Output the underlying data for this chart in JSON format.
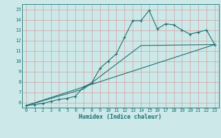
{
  "title": "",
  "xlabel": "Humidex (Indice chaleur)",
  "ylabel": "",
  "bg_color": "#cce8e8",
  "grid_color": "#d4a0a0",
  "line_color": "#1a7070",
  "xlim": [
    -0.5,
    23.5
  ],
  "ylim": [
    5.5,
    15.5
  ],
  "xticks": [
    0,
    1,
    2,
    3,
    4,
    5,
    6,
    7,
    8,
    9,
    10,
    11,
    12,
    13,
    14,
    15,
    16,
    17,
    18,
    19,
    20,
    21,
    22,
    23
  ],
  "yticks": [
    6,
    7,
    8,
    9,
    10,
    11,
    12,
    13,
    14,
    15
  ],
  "line1_x": [
    0,
    1,
    2,
    3,
    4,
    5,
    6,
    7,
    8,
    9,
    10,
    11,
    12,
    13,
    14,
    15,
    16,
    17,
    18,
    19,
    20,
    21,
    22,
    23
  ],
  "line1_y": [
    5.7,
    5.8,
    5.9,
    6.1,
    6.3,
    6.4,
    6.6,
    7.5,
    7.9,
    9.3,
    10.0,
    10.7,
    12.3,
    13.9,
    13.9,
    14.9,
    13.1,
    13.6,
    13.5,
    13.0,
    12.6,
    12.8,
    13.0,
    11.6
  ],
  "line2_x": [
    0,
    7,
    14,
    23
  ],
  "line2_y": [
    5.7,
    7.3,
    11.5,
    11.6
  ],
  "line3_x": [
    0,
    23
  ],
  "line3_y": [
    5.7,
    11.6
  ],
  "tick_fontsize": 5.0,
  "xlabel_fontsize": 6.0
}
